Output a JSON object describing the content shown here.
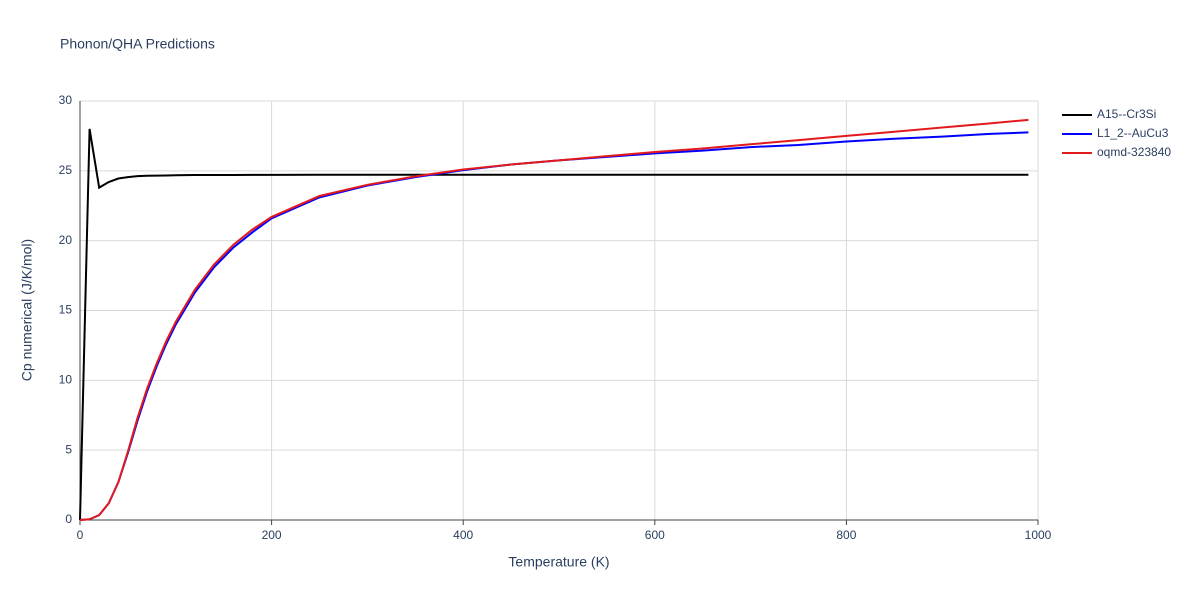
{
  "chart_data": {
    "type": "line",
    "title": "Phonon/QHA Predictions",
    "x_label": "Temperature (K)",
    "y_label": "Cp numerical (J/K/mol)",
    "x": [
      0,
      10,
      20,
      30,
      40,
      50,
      60,
      70,
      80,
      90,
      100,
      120,
      140,
      160,
      180,
      200,
      250,
      300,
      350,
      400,
      450,
      500,
      550,
      600,
      650,
      700,
      750,
      800,
      850,
      900,
      950,
      990
    ],
    "series": [
      {
        "name": "A15--Cr3Si",
        "color": "#000000",
        "values": [
          0,
          28.0,
          23.8,
          24.2,
          24.45,
          24.55,
          24.62,
          24.65,
          24.66,
          24.67,
          24.68,
          24.7,
          24.7,
          24.7,
          24.71,
          24.71,
          24.72,
          24.72,
          24.72,
          24.72,
          24.72,
          24.72,
          24.72,
          24.72,
          24.72,
          24.72,
          24.72,
          24.72,
          24.72,
          24.72,
          24.72,
          24.72
        ]
      },
      {
        "name": "L1_2--AuCu3",
        "color": "#0000ff",
        "values": [
          0,
          0.05,
          0.35,
          1.2,
          2.7,
          4.8,
          7.1,
          9.2,
          11.0,
          12.6,
          14.0,
          16.3,
          18.1,
          19.5,
          20.6,
          21.6,
          23.1,
          23.95,
          24.55,
          25.05,
          25.45,
          25.75,
          26.0,
          26.25,
          26.45,
          26.7,
          26.85,
          27.1,
          27.3,
          27.45,
          27.65,
          27.75
        ]
      },
      {
        "name": "oqmd-323840",
        "color": "#e31a1c",
        "values": [
          0,
          0.05,
          0.35,
          1.2,
          2.7,
          4.9,
          7.3,
          9.4,
          11.2,
          12.8,
          14.2,
          16.5,
          18.3,
          19.7,
          20.8,
          21.7,
          23.2,
          24.0,
          24.6,
          25.1,
          25.45,
          25.75,
          26.05,
          26.35,
          26.6,
          26.9,
          27.2,
          27.5,
          27.8,
          28.1,
          28.4,
          28.65
        ]
      }
    ],
    "xlim": [
      0,
      1000
    ],
    "xticks": [
      0,
      200,
      400,
      600,
      800,
      1000
    ],
    "ylim": [
      0,
      30
    ],
    "yticks": [
      0,
      5,
      10,
      15,
      20,
      25,
      30
    ],
    "grid": true,
    "legend": "right"
  }
}
